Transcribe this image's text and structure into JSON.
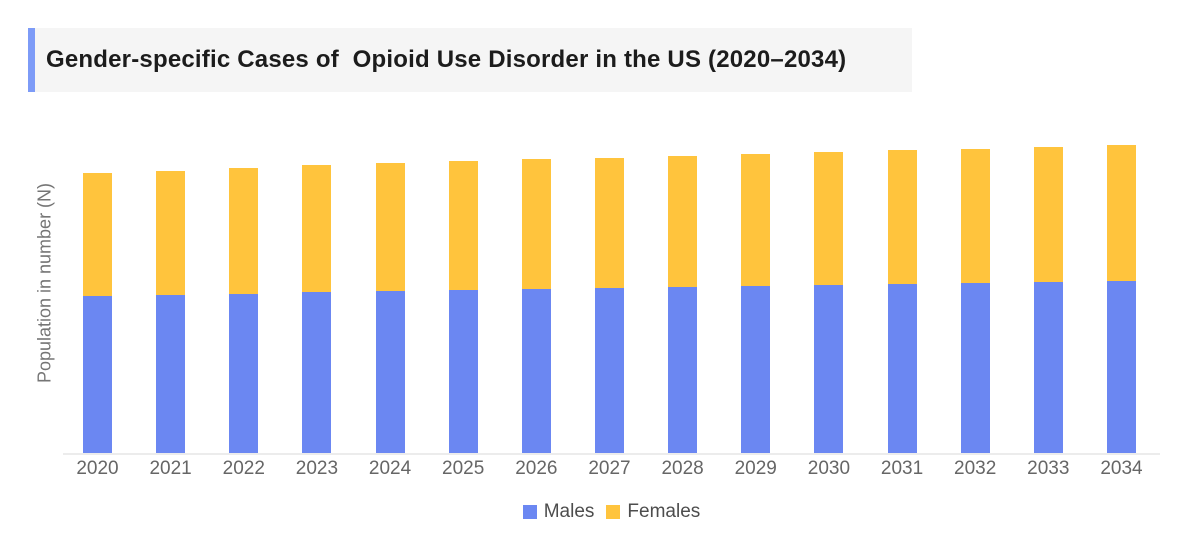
{
  "page": {
    "background": "#ffffff"
  },
  "header": {
    "title": "Gender-specific Cases of  Opioid Use Disorder in the US (2020–2034)",
    "accent_color": "#7d9bf7",
    "band_color": "#f5f5f5",
    "text_color": "#1c1c1c"
  },
  "chart_data": {
    "type": "bar",
    "stacked": true,
    "title": "Gender-specific Cases of  Opioid Use Disorder in the US (2020–2034)",
    "xlabel": "",
    "ylabel": "Population in number (N)",
    "categories": [
      "2020",
      "2021",
      "2022",
      "2023",
      "2024",
      "2025",
      "2026",
      "2027",
      "2028",
      "2029",
      "2030",
      "2031",
      "2032",
      "2033",
      "2034"
    ],
    "series": [
      {
        "name": "Males",
        "color": "#6b87f2",
        "values": [
          157,
          158,
          159,
          161,
          162,
          163,
          164,
          165,
          166,
          167,
          168,
          169,
          170,
          171,
          172
        ]
      },
      {
        "name": "Females",
        "color": "#ffc43d",
        "values": [
          123,
          124,
          126,
          127,
          128,
          129,
          130,
          130,
          131,
          132,
          133,
          134,
          134,
          135,
          136
        ]
      }
    ],
    "value_units": "relative height (no numeric y-axis ticks shown)",
    "ylim": [
      0,
      313
    ],
    "grid": false,
    "y_ticks_shown": false,
    "legend_position": "bottom",
    "axis_line_color": "#ececec",
    "x_tick_color": "#666666",
    "ylabel_color": "#757575"
  },
  "legend": {
    "items": [
      {
        "label": "Males",
        "color": "#6b87f2"
      },
      {
        "label": "Females",
        "color": "#ffc43d"
      }
    ]
  }
}
